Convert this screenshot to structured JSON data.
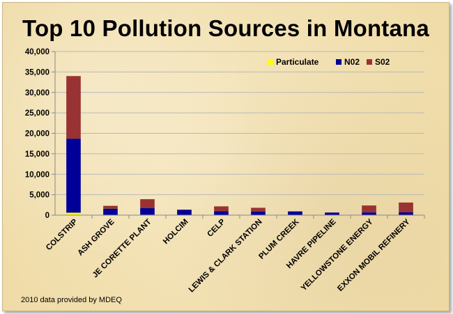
{
  "chart_data": {
    "type": "bar",
    "stacked": true,
    "title": "Top 10 Pollution Sources in Montana",
    "note": "2010 data provided by MDEQ",
    "categories": [
      "COLSTRIP",
      "ASH GROVE",
      "JE CORETTE PLANT",
      "HOLCIM",
      "CELP",
      "LEWIS & CLARK STATION",
      "PLUM CREEK",
      "HAVRE PIPELINE",
      "YELLOWSTONE ENERGY",
      "EXXON MOBIL REFINERY"
    ],
    "series": [
      {
        "name": "Particulate",
        "color": "#ffff00",
        "values": [
          600,
          80,
          100,
          60,
          50,
          50,
          50,
          20,
          60,
          80
        ]
      },
      {
        "name": "N02",
        "color": "#000099",
        "values": [
          18100,
          1500,
          1600,
          1250,
          900,
          850,
          850,
          600,
          600,
          600
        ]
      },
      {
        "name": "S02",
        "color": "#993333",
        "values": [
          15300,
          700,
          2200,
          40,
          1200,
          900,
          50,
          30,
          1700,
          2400
        ]
      }
    ],
    "ylim": [
      0,
      40000
    ],
    "yticks": [
      "0",
      "5,000",
      "10,000",
      "15,000",
      "20,000",
      "25,000",
      "30,000",
      "35,000",
      "40,000"
    ],
    "grid": true,
    "legend_position": "top-right"
  }
}
